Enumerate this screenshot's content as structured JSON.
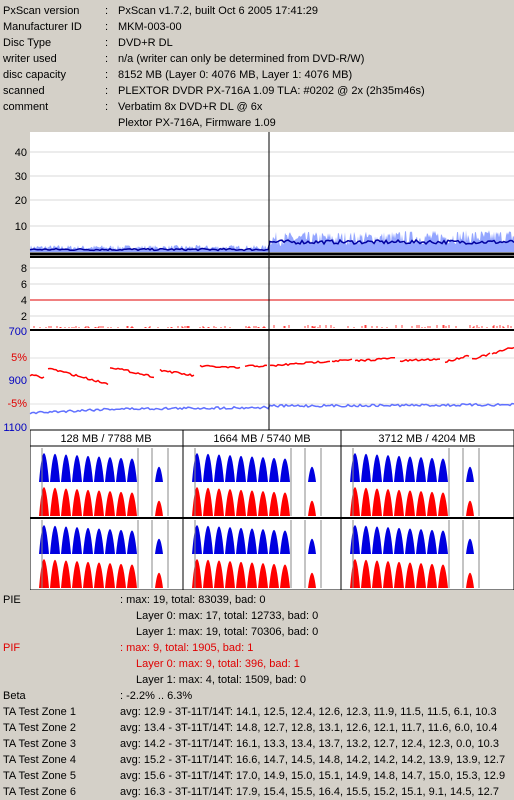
{
  "header": [
    {
      "label": "PxScan version",
      "value": "PxScan v1.7.2, built Oct  6 2005 17:41:29"
    },
    {
      "label": "Manufacturer ID",
      "value": "MKM-003-00"
    },
    {
      "label": "Disc Type",
      "value": "DVD+R DL"
    },
    {
      "label": "writer used",
      "value": "n/a (writer can only be determined from DVD-R/W)"
    },
    {
      "label": "disc capacity",
      "value": "8152 MB (Layer 0: 4076 MB,  Layer 1: 4076 MB)"
    },
    {
      "label": "scanned",
      "value": "PLEXTOR DVDR PX-716A 1.09 TLA: #0202 @ 2x (2h35m46s)"
    },
    {
      "label": "comment",
      "value": "Verbatim 8x DVD+R DL @ 6x"
    },
    {
      "label": "",
      "value": "Plextor PX-716A, Firmware 1.09"
    }
  ],
  "separator": ":",
  "chart_data": [
    {
      "type": "area",
      "name": "PIE",
      "y_ticks": [
        "40",
        "30",
        "20",
        "10"
      ],
      "ylim": [
        0,
        48
      ],
      "layer_break_fraction": 0.5,
      "layer0_level": 2,
      "layer1_level": 5
    },
    {
      "type": "bar",
      "name": "PIF",
      "y_ticks": [
        "8",
        "6",
        "4",
        "2"
      ],
      "ylim": [
        0,
        9
      ],
      "threshold": 4
    },
    {
      "type": "line",
      "name": "Beta / Jitter",
      "y_ticks_left": [
        "700",
        "5%",
        "900",
        "-5%",
        "1100"
      ],
      "beta_range": [
        "-2.2%",
        "6.3%"
      ]
    }
  ],
  "zones": {
    "titles": [
      "128 MB / 7788 MB",
      "1664 MB / 5740 MB",
      "3712 MB / 4204 MB"
    ],
    "colors": {
      "blue": "#0000e0",
      "red": "#ff0000"
    }
  },
  "stats": [
    {
      "label": "PIE",
      "value": ": max: 19, total: 83039, bad: 0",
      "red": false
    },
    {
      "label": "",
      "value": "Layer 0: max: 17, total: 12733, bad: 0",
      "red": false,
      "indent": true
    },
    {
      "label": "",
      "value": "Layer 1: max: 19, total: 70306, bad: 0",
      "red": false,
      "indent": true
    },
    {
      "label": "PIF",
      "value": ": max: 9, total: 1905, bad: 1",
      "red": true
    },
    {
      "label": "",
      "value": "Layer 0: max: 9, total: 396, bad: 1",
      "red": true,
      "indent": true
    },
    {
      "label": "",
      "value": "Layer 1: max: 4, total: 1509, bad: 0",
      "red": false,
      "indent": true
    },
    {
      "label": "Beta",
      "value": ": -2.2% .. 6.3%",
      "red": false
    },
    {
      "label": "TA Test Zone 1",
      "value": "avg: 12.9 - 3T-11T/14T: 14.1, 12.5, 12.4, 12.6, 12.3, 11.9, 11.5, 11.5, 6.1, 10.3",
      "red": false
    },
    {
      "label": "TA Test Zone 2",
      "value": "avg: 13.4 - 3T-11T/14T: 14.8, 12.7, 12.8, 13.1, 12.6, 12.1, 11.7, 11.6, 6.0, 10.4",
      "red": false
    },
    {
      "label": "TA Test Zone 3",
      "value": "avg: 14.2 - 3T-11T/14T: 16.1, 13.3, 13.4, 13.7, 13.2, 12.7, 12.4, 12.3, 0.0, 10.3",
      "red": false
    },
    {
      "label": "TA Test Zone 4",
      "value": "avg: 15.2 - 3T-11T/14T: 16.6, 14.7, 14.5, 14.8, 14.2, 14.2, 14.2, 13.9, 13.9, 12.7",
      "red": false
    },
    {
      "label": "TA Test Zone 5",
      "value": "avg: 15.6 - 3T-11T/14T: 17.0, 14.9, 15.0, 15.1, 14.9, 14.8, 14.7, 15.0, 15.3, 12.9",
      "red": false
    },
    {
      "label": "TA Test Zone 6",
      "value": "avg: 16.3 - 3T-11T/14T: 17.9, 15.4, 15.5, 16.4, 15.5, 15.2, 15.1, 9.1, 14.5, 12.7",
      "red": false
    }
  ]
}
